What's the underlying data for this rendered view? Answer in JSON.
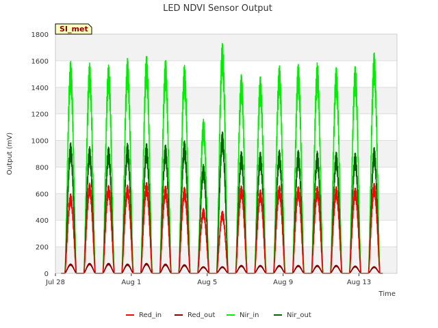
{
  "chart_data": {
    "type": "line",
    "title": "LED NDVI Sensor Output",
    "badge": "SI_met",
    "xlabel": "Time",
    "ylabel": "Output (mV)",
    "ylim": [
      0,
      1800
    ],
    "yticks": [
      0,
      200,
      400,
      600,
      800,
      1000,
      1200,
      1400,
      1600,
      1800
    ],
    "xlim_days": [
      0,
      18
    ],
    "xticks": [
      {
        "label": "Jul 28",
        "day": 0
      },
      {
        "label": "Aug 1",
        "day": 4
      },
      {
        "label": "Aug 5",
        "day": 8
      },
      {
        "label": "Aug 9",
        "day": 12
      },
      {
        "label": "Aug 13",
        "day": 16
      }
    ],
    "background_bands": true,
    "legend_position": "bottom",
    "peak_days": [
      0.8,
      1.8,
      2.8,
      3.8,
      4.8,
      5.8,
      6.8,
      7.8,
      8.8,
      9.8,
      10.8,
      11.8,
      12.8,
      13.8,
      14.8,
      15.8,
      16.8
    ],
    "series": [
      {
        "name": "Red_in",
        "color": "#ff0000",
        "peaks": [
          600,
          680,
          665,
          665,
          685,
          660,
          650,
          490,
          470,
          660,
          630,
          660,
          655,
          655,
          655,
          645,
          680
        ]
      },
      {
        "name": "Red_out",
        "color": "#800000",
        "peaks": [
          70,
          75,
          75,
          70,
          75,
          70,
          65,
          50,
          50,
          60,
          60,
          60,
          60,
          60,
          60,
          55,
          50
        ]
      },
      {
        "name": "Nir_in",
        "color": "#00ee00",
        "peaks": [
          1600,
          1585,
          1575,
          1620,
          1640,
          1610,
          1570,
          1160,
          1740,
          1500,
          1485,
          1565,
          1580,
          1585,
          1555,
          1565,
          1665
        ]
      },
      {
        "name": "Nir_out",
        "color": "#006400",
        "peaks": [
          985,
          955,
          955,
          980,
          980,
          970,
          1000,
          820,
          1070,
          920,
          915,
          930,
          930,
          920,
          915,
          910,
          950
        ]
      }
    ]
  }
}
